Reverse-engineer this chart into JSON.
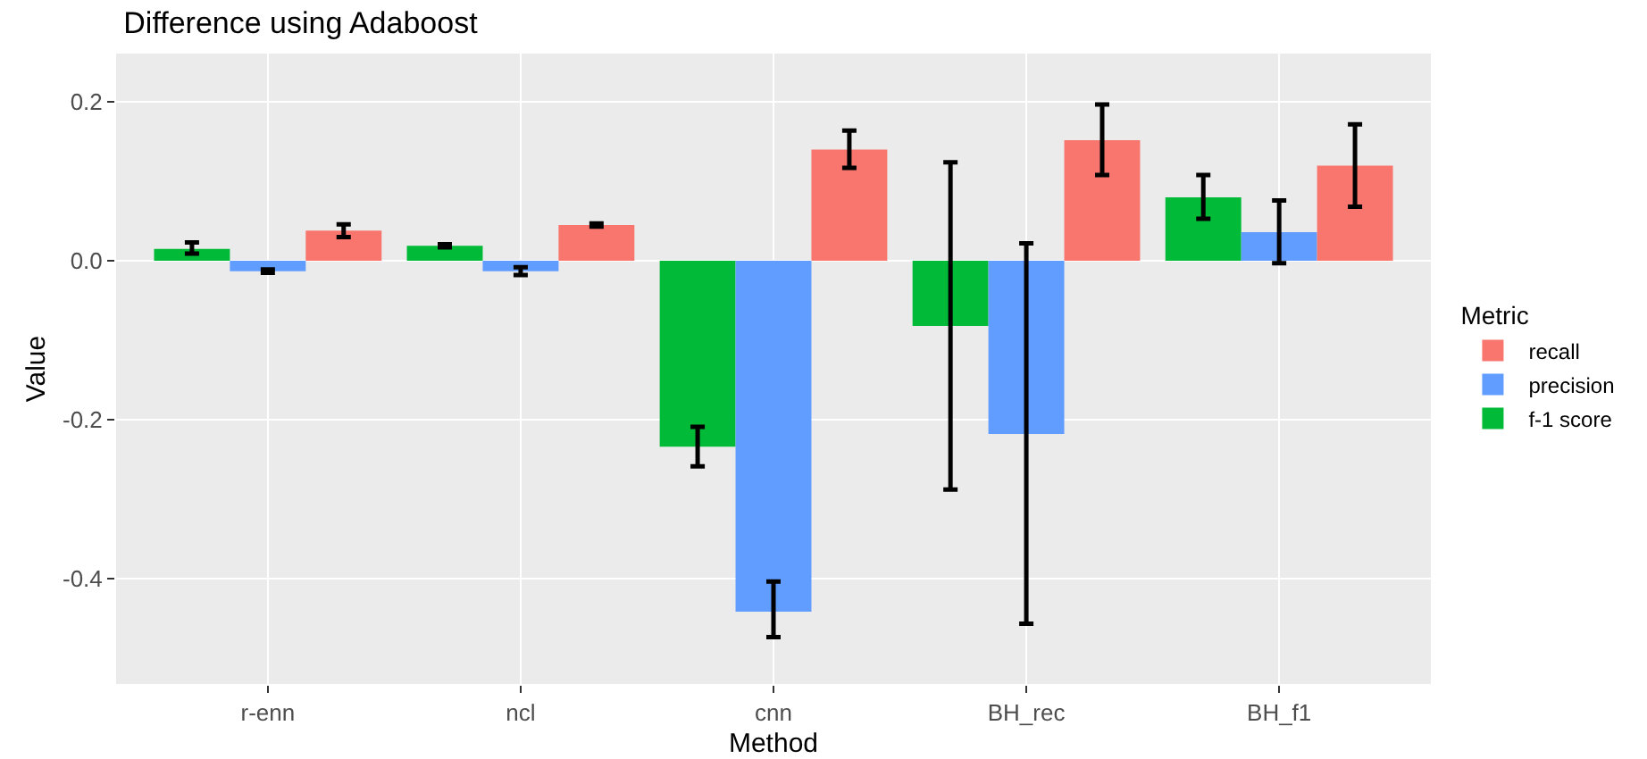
{
  "chart_data": {
    "type": "bar",
    "title": "Difference using Adaboost",
    "xlabel": "Method",
    "ylabel": "Value",
    "legend_title": "Metric",
    "categories": [
      "r-enn",
      "ncl",
      "cnn",
      "BH_rec",
      "BH_f1"
    ],
    "series": [
      {
        "name": "f-1 score",
        "color": "#00ba38",
        "values": [
          0.015,
          0.019,
          -0.234,
          -0.082,
          0.08
        ],
        "errors": [
          [
            0.009,
            0.023
          ],
          [
            0.017,
            0.021
          ],
          [
            -0.259,
            -0.209
          ],
          [
            -0.288,
            0.124
          ],
          [
            0.053,
            0.108
          ]
        ]
      },
      {
        "name": "precision",
        "color": "#619cff",
        "values": [
          -0.013,
          -0.013,
          -0.442,
          -0.218,
          0.036
        ],
        "errors": [
          [
            -0.015,
            -0.011
          ],
          [
            -0.018,
            -0.008
          ],
          [
            -0.474,
            -0.404
          ],
          [
            -0.457,
            0.022
          ],
          [
            -0.003,
            0.076
          ]
        ]
      },
      {
        "name": "recall",
        "color": "#f8766d",
        "values": [
          0.038,
          0.045,
          0.14,
          0.152,
          0.12
        ],
        "errors": [
          [
            0.03,
            0.046
          ],
          [
            0.043,
            0.047
          ],
          [
            0.117,
            0.164
          ],
          [
            0.108,
            0.197
          ],
          [
            0.068,
            0.172
          ]
        ]
      }
    ],
    "ylim": [
      -0.533,
      0.261
    ],
    "yticks": [
      {
        "value": -0.4,
        "label": "-0.4"
      },
      {
        "value": -0.2,
        "label": "-0.2"
      },
      {
        "value": 0,
        "label": "0.0"
      },
      {
        "value": 0.2,
        "label": "0.2"
      }
    ],
    "grid": true,
    "legend": "right"
  }
}
